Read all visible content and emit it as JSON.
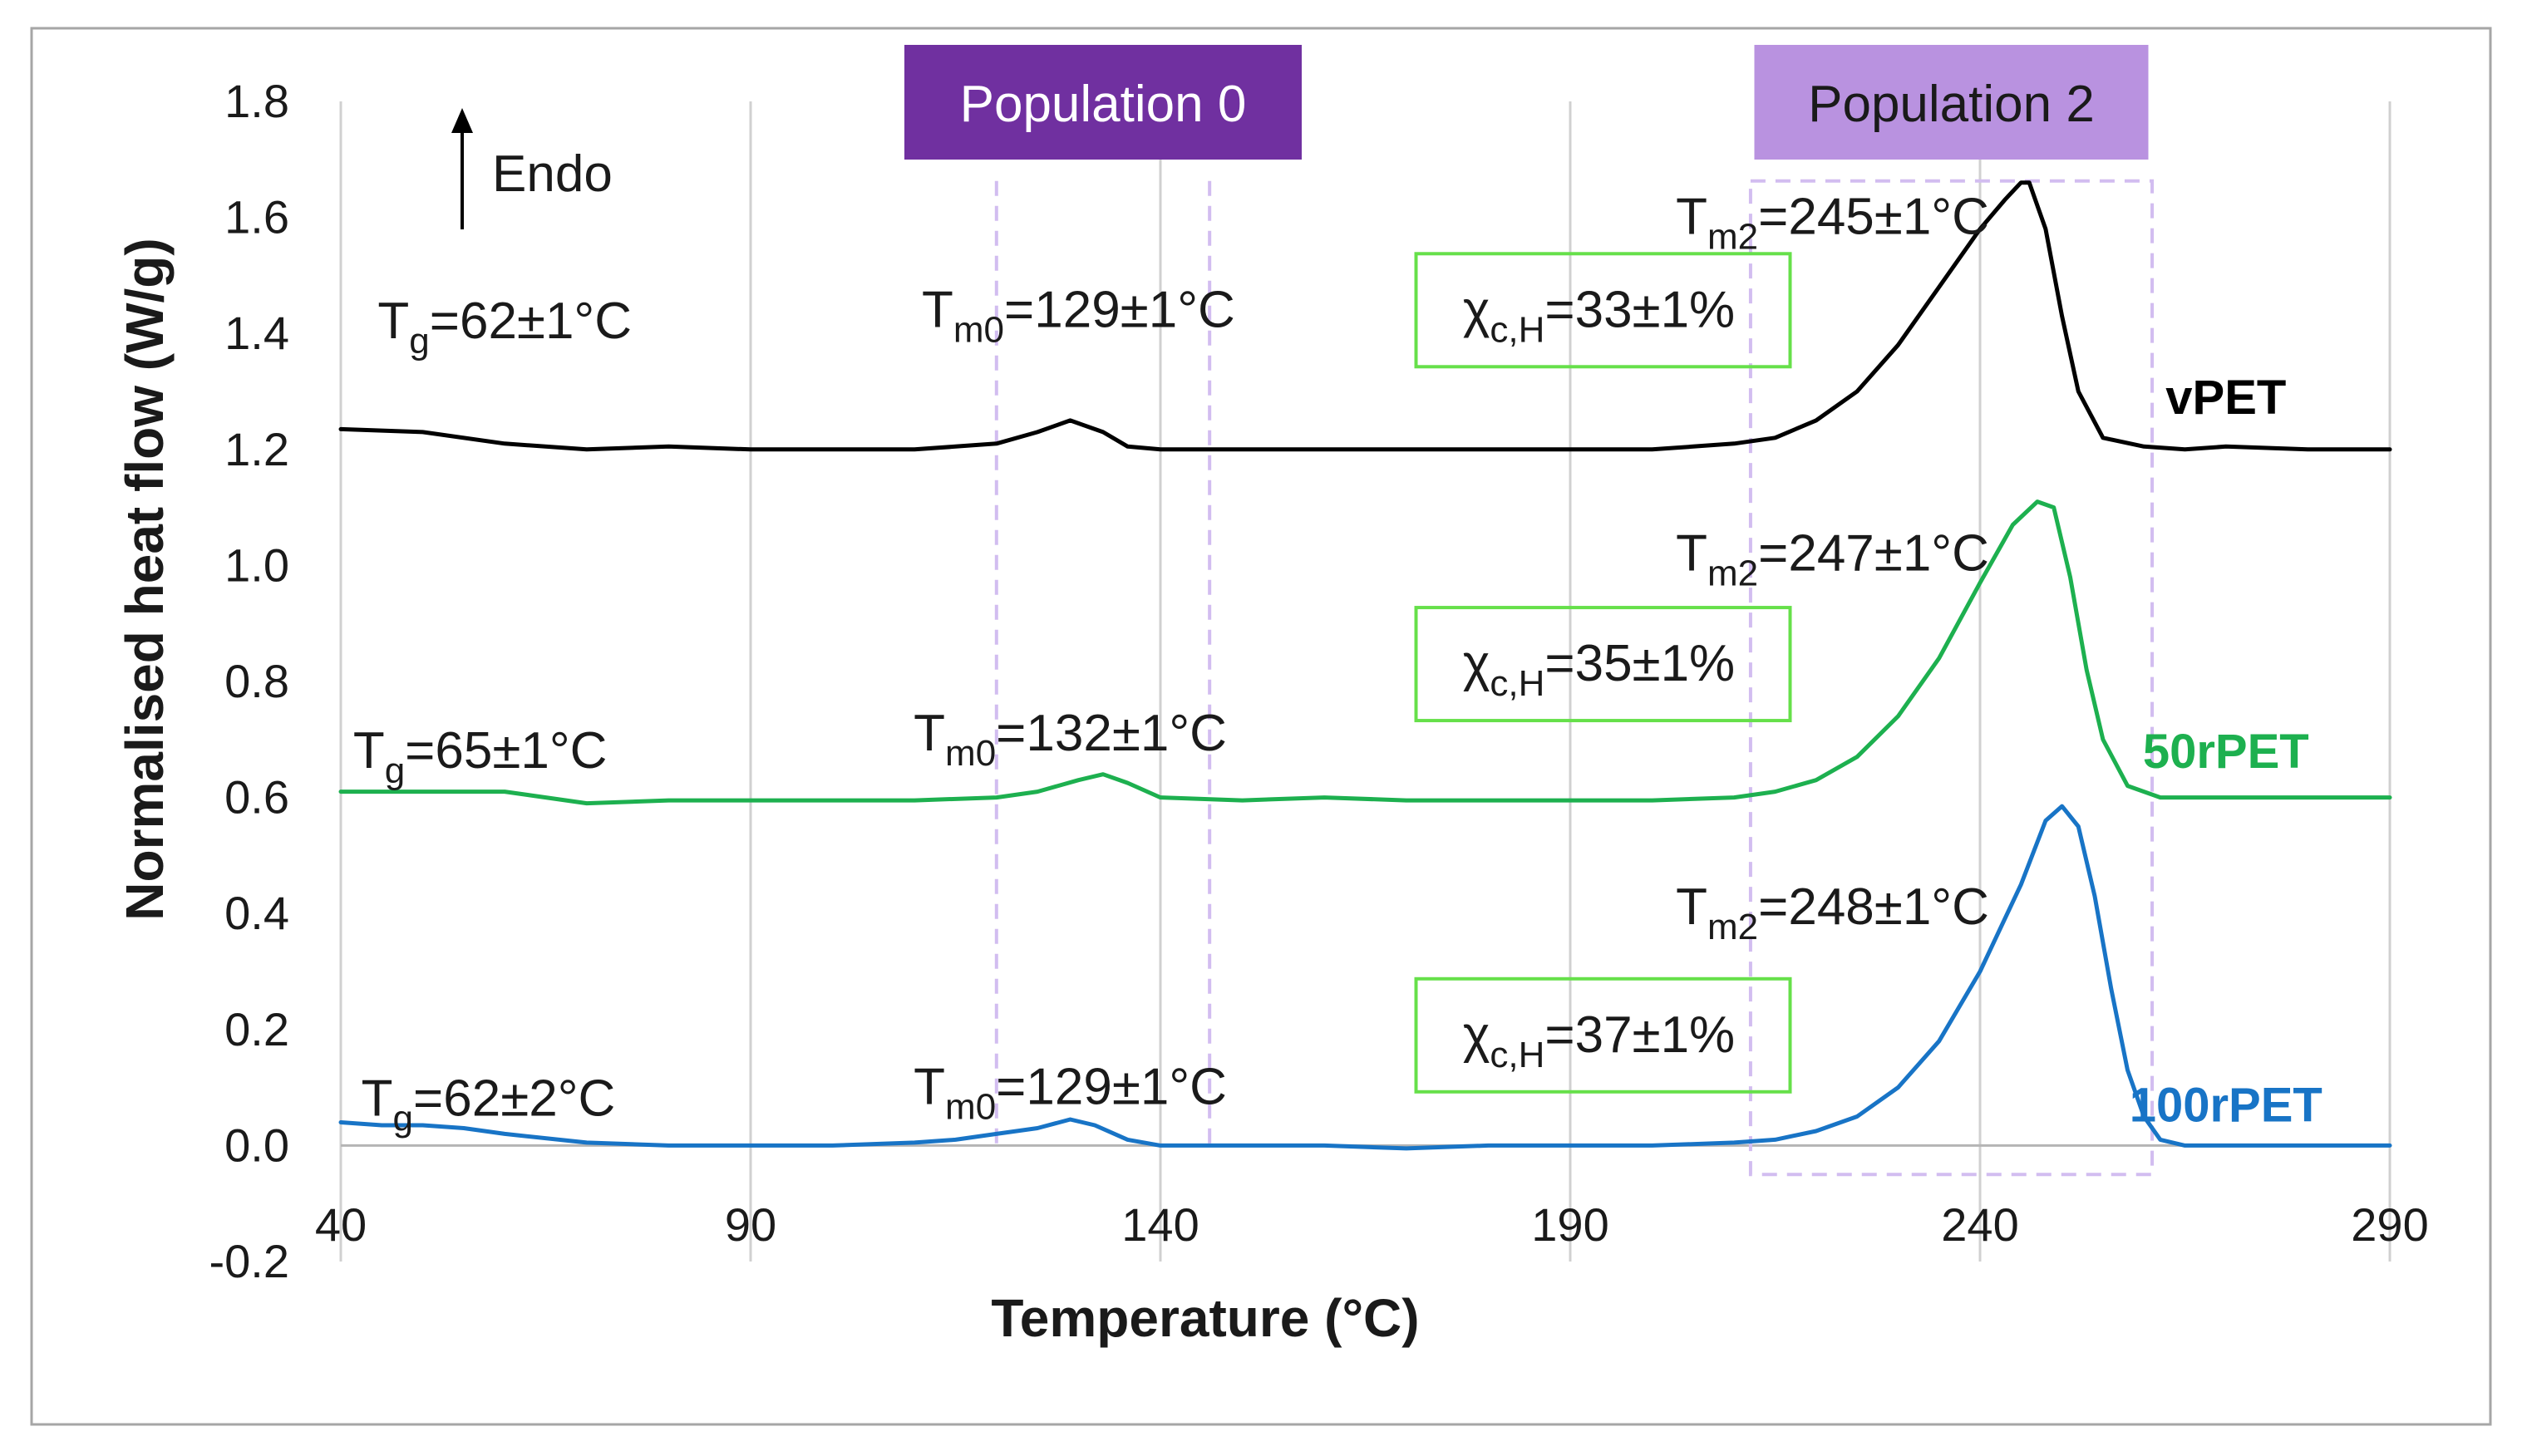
{
  "chart_data": {
    "type": "line",
    "xlabel": "Temperature (°C)",
    "ylabel": "Normalised heat flow (W/g)",
    "xlim": [
      40,
      290
    ],
    "ylim": [
      -0.2,
      1.8
    ],
    "xticks": [
      40,
      90,
      140,
      190,
      240,
      290
    ],
    "xtick_labels": [
      "40",
      "90",
      "140",
      "190",
      "240",
      "290"
    ],
    "yticks": [
      -0.2,
      0.0,
      0.2,
      0.4,
      0.6,
      0.8,
      1.0,
      1.2,
      1.4,
      1.6,
      1.8
    ],
    "ytick_labels": [
      "-0.2",
      "0.0",
      "0.2",
      "0.4",
      "0.6",
      "0.8",
      "1.0",
      "1.2",
      "1.4",
      "1.6",
      "1.8"
    ],
    "grid": "vertical",
    "endo_label": "Endo",
    "colors": {
      "vPET": "#000000",
      "50rPET": "#1db04f",
      "100rPET": "#1874c6",
      "pop0": "#7030a0",
      "pop2": "#b992e0",
      "box": "#66e04a",
      "grid": "#d0d0d0"
    },
    "regions": [
      {
        "name": "Population 0",
        "x_start": 120,
        "x_end": 146,
        "y_bottom": 0.0,
        "y_top": 1.68
      },
      {
        "name": "Population 2",
        "x_start": 212,
        "x_end": 261,
        "y_bottom": -0.05,
        "y_top": 1.68
      }
    ],
    "series": [
      {
        "name": "vPET",
        "x": [
          40,
          50,
          60,
          70,
          80,
          90,
          100,
          110,
          115,
          120,
          125,
          129,
          133,
          136,
          140,
          150,
          160,
          170,
          180,
          190,
          200,
          205,
          210,
          215,
          220,
          225,
          230,
          235,
          240,
          243,
          245,
          246,
          248,
          250,
          252,
          255,
          260,
          265,
          270,
          280,
          290
        ],
        "values": [
          1.235,
          1.23,
          1.21,
          1.2,
          1.205,
          1.2,
          1.2,
          1.2,
          1.205,
          1.21,
          1.23,
          1.25,
          1.23,
          1.205,
          1.2,
          1.2,
          1.2,
          1.2,
          1.2,
          1.2,
          1.2,
          1.205,
          1.21,
          1.22,
          1.25,
          1.3,
          1.38,
          1.48,
          1.58,
          1.63,
          1.66,
          1.66,
          1.58,
          1.43,
          1.3,
          1.22,
          1.205,
          1.2,
          1.205,
          1.2,
          1.2
        ]
      },
      {
        "name": "50rPET",
        "x": [
          40,
          50,
          60,
          70,
          80,
          90,
          100,
          110,
          120,
          125,
          130,
          133,
          136,
          140,
          150,
          160,
          170,
          180,
          190,
          200,
          210,
          215,
          220,
          225,
          230,
          235,
          240,
          244,
          247,
          249,
          251,
          253,
          255,
          258,
          262,
          270,
          280,
          290
        ],
        "values": [
          0.61,
          0.61,
          0.61,
          0.59,
          0.595,
          0.595,
          0.595,
          0.595,
          0.6,
          0.61,
          0.63,
          0.64,
          0.625,
          0.6,
          0.595,
          0.6,
          0.595,
          0.595,
          0.595,
          0.595,
          0.6,
          0.61,
          0.63,
          0.67,
          0.74,
          0.84,
          0.97,
          1.07,
          1.11,
          1.1,
          0.98,
          0.82,
          0.7,
          0.62,
          0.6,
          0.6,
          0.6,
          0.6
        ]
      },
      {
        "name": "100rPET",
        "x": [
          40,
          45,
          50,
          55,
          60,
          70,
          80,
          90,
          100,
          110,
          115,
          120,
          125,
          129,
          132,
          136,
          140,
          150,
          160,
          170,
          180,
          190,
          200,
          210,
          215,
          220,
          225,
          230,
          235,
          240,
          245,
          248,
          250,
          252,
          254,
          256,
          258,
          260,
          262,
          265,
          270,
          280,
          290
        ],
        "values": [
          0.04,
          0.035,
          0.035,
          0.03,
          0.02,
          0.005,
          0.0,
          0.0,
          0.0,
          0.005,
          0.01,
          0.02,
          0.03,
          0.045,
          0.035,
          0.01,
          0.0,
          0.0,
          0.0,
          -0.005,
          0.0,
          0.0,
          0.0,
          0.005,
          0.01,
          0.025,
          0.05,
          0.1,
          0.18,
          0.3,
          0.45,
          0.56,
          0.585,
          0.55,
          0.43,
          0.27,
          0.13,
          0.05,
          0.01,
          0.0,
          0.0,
          0.0,
          0.0
        ]
      }
    ],
    "annotations": [
      {
        "id": "vpet-tg",
        "main": "T",
        "sub": "g",
        "rest": "=62±1°C",
        "x": 60,
        "y": 1.42,
        "boxed": false
      },
      {
        "id": "vpet-tm0",
        "main": "T",
        "sub": "m0",
        "rest": "=129±1°C",
        "x": 130,
        "y": 1.44,
        "boxed": false
      },
      {
        "id": "vpet-chi",
        "main": "χ",
        "sub": "c,H",
        "rest": "=33±1%",
        "x": 193.5,
        "y": 1.44,
        "boxed": true
      },
      {
        "id": "vpet-tm2",
        "main": "T",
        "sub": "m2",
        "rest": "=245±1°C",
        "x": 222,
        "y": 1.6,
        "boxed": false
      },
      {
        "id": "50rpet-tg",
        "main": "T",
        "sub": "g",
        "rest": "=65±1°C",
        "x": 57,
        "y": 0.68,
        "boxed": false
      },
      {
        "id": "50rpet-tm0",
        "main": "T",
        "sub": "m0",
        "rest": "=132±1°C",
        "x": 129,
        "y": 0.71,
        "boxed": false
      },
      {
        "id": "50rpet-chi",
        "main": "χ",
        "sub": "c,H",
        "rest": "=35±1%",
        "x": 193.5,
        "y": 0.83,
        "boxed": true
      },
      {
        "id": "50rpet-tm2",
        "main": "T",
        "sub": "m2",
        "rest": "=247±1°C",
        "x": 222,
        "y": 1.02,
        "boxed": false
      },
      {
        "id": "100rpet-tg",
        "main": "T",
        "sub": "g",
        "rest": "=62±2°C",
        "x": 58,
        "y": 0.08,
        "boxed": false
      },
      {
        "id": "100rpet-tm0",
        "main": "T",
        "sub": "m0",
        "rest": "=129±1°C",
        "x": 129,
        "y": 0.1,
        "boxed": false
      },
      {
        "id": "100rpet-chi",
        "main": "χ",
        "sub": "c,H",
        "rest": "=37±1%",
        "x": 193.5,
        "y": 0.19,
        "boxed": true
      },
      {
        "id": "100rpet-tm2",
        "main": "T",
        "sub": "m2",
        "rest": "=248±1°C",
        "x": 222,
        "y": 0.41,
        "boxed": false
      }
    ],
    "series_labels": [
      {
        "name": "vPET",
        "text": "vPET",
        "x": 270,
        "y": 1.29
      },
      {
        "name": "50rPET",
        "text": "50rPET",
        "x": 270,
        "y": 0.68
      },
      {
        "name": "100rPET",
        "text": "100rPET",
        "x": 270,
        "y": 0.07
      }
    ]
  }
}
